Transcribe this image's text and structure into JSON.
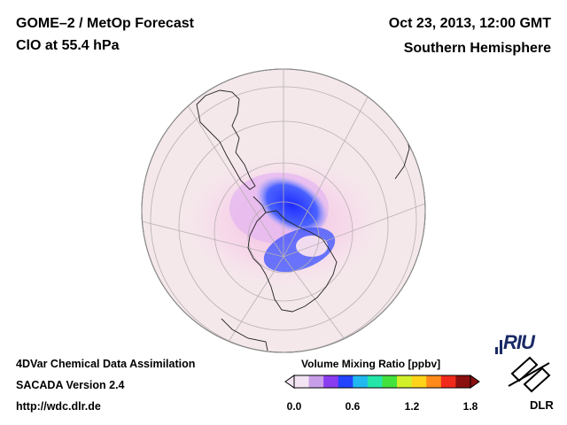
{
  "header": {
    "title": "GOME–2 / MetOp Forecast",
    "species": "ClO at 55.4 hPa",
    "datetime": "Oct 23, 2013, 12:00 GMT",
    "region": "Southern Hemisphere"
  },
  "footer": {
    "line1": "4DVar Chemical Data Assimilation",
    "line2": "SACADA Version 2.4",
    "line3": "http://wdc.dlr.de"
  },
  "colorbar": {
    "title": "Volume Mixing Ratio [ppbv]",
    "ticks": [
      "0.0",
      "0.6",
      "1.2",
      "1.8"
    ],
    "min": 0.0,
    "max": 1.8,
    "colors": [
      "#f3e4f3",
      "#c99ee8",
      "#8a3cf0",
      "#2244ff",
      "#21b8f0",
      "#23e6a8",
      "#44e23c",
      "#d2f02a",
      "#ffd31a",
      "#ff8a1a",
      "#f02a1a",
      "#8a1010"
    ]
  },
  "logos": {
    "riu": "RIU",
    "dlr": "DLR"
  }
}
